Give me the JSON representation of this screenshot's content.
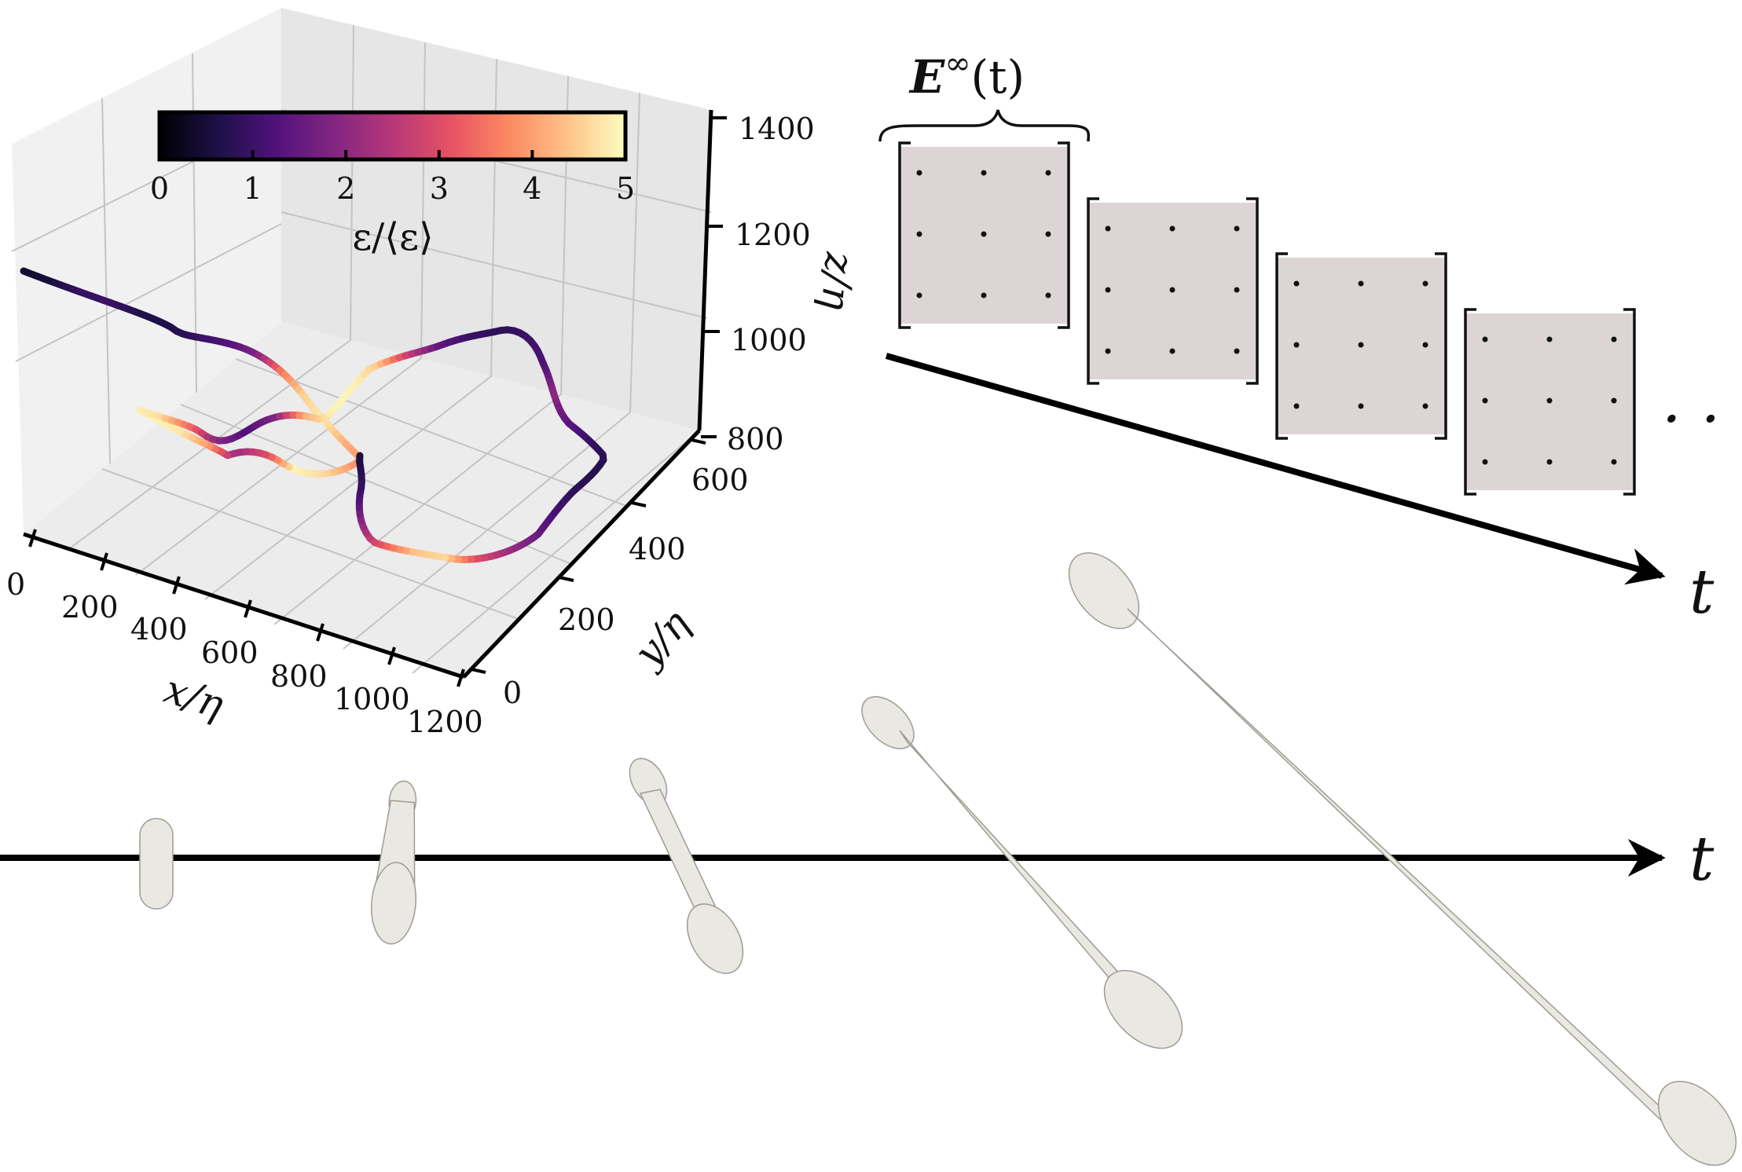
{
  "plot3d": {
    "ticks_x": [
      "0",
      "200",
      "400",
      "600",
      "800",
      "1000",
      "1200"
    ],
    "ticks_y": [
      "0",
      "200",
      "400",
      "600"
    ],
    "ticks_z": [
      "800",
      "1000",
      "1200",
      "1400"
    ],
    "xlabel": "x/η",
    "ylabel": "y/η",
    "zlabel": "z/η",
    "colorbar": {
      "colormap": "magma",
      "stops": [
        "#000004",
        "#1d1147",
        "#51127c",
        "#822681",
        "#b73779",
        "#e75263",
        "#fc8961",
        "#fec287",
        "#fcfdbf"
      ],
      "ticks": [
        "0",
        "1",
        "2",
        "3",
        "4",
        "5"
      ],
      "label": "ε/⟨ε⟩"
    },
    "trajectory_color_levels": [
      0.4,
      0.5,
      0.9,
      1.0,
      0.7,
      0.6,
      0.9,
      1.2,
      1.8,
      3.6,
      4.5,
      4.8,
      4.2,
      3.8,
      4.6,
      4.9,
      3.0,
      2.2,
      4.0,
      4.8,
      4.9,
      4.7,
      3.5,
      2.0,
      1.2,
      1.8,
      4.2,
      4.9,
      4.9,
      4.5,
      2.8,
      1.5,
      1.0,
      0.8,
      1.0,
      1.2,
      2.0,
      1.4,
      0.9,
      0.7,
      0.8,
      1.1,
      1.6,
      2.2,
      3.0,
      4.6,
      4.4,
      3.2,
      2.0,
      1.0,
      0.6
    ]
  },
  "schematic": {
    "field_label_base": "E",
    "field_label_sup": "∞",
    "field_label_arg": "(t)",
    "time_label": "t",
    "ellipsis": "· · ·"
  },
  "droplet_sequence": {
    "time_label": "t"
  }
}
